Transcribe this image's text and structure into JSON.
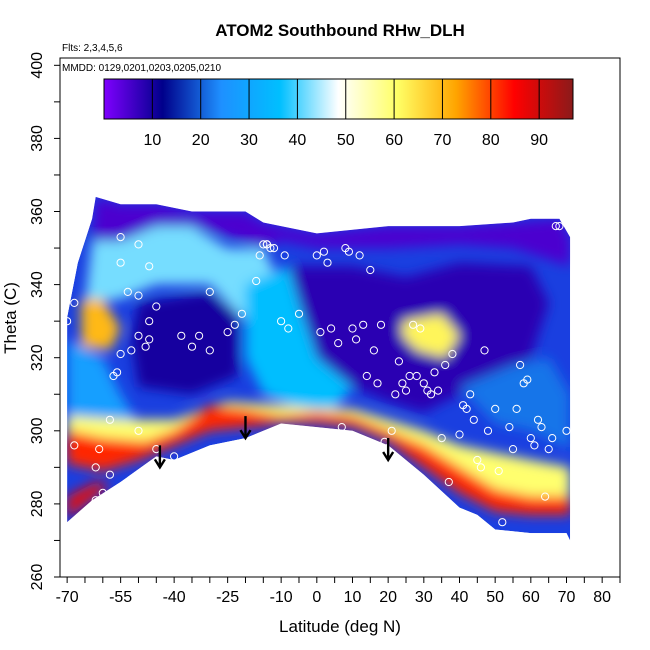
{
  "chart_data": {
    "type": "heatmap",
    "title": "ATOM2 Southbound RHw_DLH",
    "subtitle_flights": "Flts: 2,3,4,5,6",
    "subtitle_dates": "MMDD: 0129,0201,0203,0205,0210",
    "xlabel": "Latitude (deg N)",
    "ylabel": "Theta (C)",
    "xlim": [
      -72,
      85
    ],
    "ylim": [
      260,
      402
    ],
    "x_ticks": [
      -70,
      -55,
      -40,
      -25,
      -10,
      0,
      10,
      20,
      30,
      40,
      50,
      60,
      70,
      80
    ],
    "y_ticks": [
      260,
      280,
      300,
      320,
      340,
      360,
      380,
      400
    ],
    "colorbar": {
      "range": [
        0,
        97
      ],
      "ticks": [
        10,
        20,
        30,
        40,
        50,
        60,
        70,
        80,
        90
      ],
      "colors": [
        "#7f00ff",
        "#00008b",
        "#1e90ff",
        "#00bfff",
        "#ffffff",
        "#ffff66",
        "#ffa500",
        "#ff0000",
        "#8b1a1a"
      ]
    },
    "field_top": [
      [
        -70,
        331
      ],
      [
        -67,
        346
      ],
      [
        -63,
        358
      ],
      [
        -62,
        364
      ],
      [
        -55,
        362
      ],
      [
        -45,
        362
      ],
      [
        -35,
        360
      ],
      [
        -20,
        360
      ],
      [
        -15,
        357
      ],
      [
        -10,
        356
      ],
      [
        0,
        354
      ],
      [
        20,
        356
      ],
      [
        40,
        356
      ],
      [
        55,
        357
      ],
      [
        60,
        358
      ],
      [
        68,
        358
      ],
      [
        71,
        353
      ]
    ],
    "field_bottom": [
      [
        -70,
        275
      ],
      [
        -63,
        281
      ],
      [
        -55,
        286
      ],
      [
        -45,
        293
      ],
      [
        -40,
        292
      ],
      [
        -30,
        296
      ],
      [
        -20,
        298
      ],
      [
        -10,
        302
      ],
      [
        0,
        301
      ],
      [
        10,
        300
      ],
      [
        20,
        296
      ],
      [
        30,
        288
      ],
      [
        40,
        279
      ],
      [
        45,
        277
      ],
      [
        50,
        273
      ],
      [
        60,
        272
      ],
      [
        70,
        272
      ],
      [
        71,
        270
      ]
    ],
    "regions": [
      {
        "name": "upper-dry-band",
        "value": 5,
        "poly": [
          [
            -62,
            364
          ],
          [
            -55,
            362
          ],
          [
            -45,
            362
          ],
          [
            -35,
            360
          ],
          [
            -20,
            360
          ],
          [
            -15,
            357
          ],
          [
            0,
            354
          ],
          [
            20,
            356
          ],
          [
            40,
            356
          ],
          [
            55,
            357
          ],
          [
            68,
            358
          ],
          [
            71,
            353
          ],
          [
            71,
            345
          ],
          [
            55,
            350
          ],
          [
            40,
            351
          ],
          [
            20,
            350
          ],
          [
            0,
            350
          ],
          [
            -10,
            352
          ],
          [
            -15,
            350
          ],
          [
            -35,
            356
          ],
          [
            -45,
            356
          ],
          [
            -55,
            352
          ],
          [
            -63,
            352
          ]
        ]
      },
      {
        "name": "upper-moist-tongue",
        "value": 42,
        "poly": [
          [
            -63,
            352
          ],
          [
            -55,
            352
          ],
          [
            -45,
            356
          ],
          [
            -35,
            356
          ],
          [
            -25,
            350
          ],
          [
            -15,
            350
          ],
          [
            -10,
            340
          ],
          [
            -8,
            320
          ],
          [
            -12,
            315
          ],
          [
            -20,
            330
          ],
          [
            -30,
            340
          ],
          [
            -45,
            340
          ],
          [
            -55,
            336
          ],
          [
            -65,
            335
          ]
        ]
      },
      {
        "name": "mid-dry-west",
        "value": 10,
        "poly": [
          [
            -50,
            335
          ],
          [
            -30,
            338
          ],
          [
            -22,
            332
          ],
          [
            -22,
            315
          ],
          [
            -35,
            310
          ],
          [
            -50,
            312
          ],
          [
            -52,
            325
          ]
        ]
      },
      {
        "name": "mid-dry-east",
        "value": 8,
        "poly": [
          [
            -8,
            345
          ],
          [
            10,
            345
          ],
          [
            25,
            342
          ],
          [
            40,
            346
          ],
          [
            60,
            345
          ],
          [
            65,
            335
          ],
          [
            60,
            320
          ],
          [
            50,
            315
          ],
          [
            40,
            310
          ],
          [
            30,
            305
          ],
          [
            20,
            308
          ],
          [
            10,
            312
          ],
          [
            0,
            320
          ],
          [
            -5,
            335
          ]
        ]
      },
      {
        "name": "mid-moist-center",
        "value": 36,
        "poly": [
          [
            -20,
            340
          ],
          [
            -8,
            345
          ],
          [
            -5,
            335
          ],
          [
            0,
            320
          ],
          [
            10,
            312
          ],
          [
            5,
            306
          ],
          [
            -5,
            306
          ],
          [
            -15,
            310
          ],
          [
            -20,
            320
          ]
        ]
      },
      {
        "name": "moist-patch-east",
        "value": 62,
        "poly": [
          [
            24,
            330
          ],
          [
            35,
            332
          ],
          [
            40,
            326
          ],
          [
            36,
            320
          ],
          [
            28,
            322
          ],
          [
            24,
            326
          ]
        ]
      },
      {
        "name": "moist-patch-west",
        "value": 70,
        "poly": [
          [
            -66,
            336
          ],
          [
            -60,
            336
          ],
          [
            -55,
            328
          ],
          [
            -58,
            322
          ],
          [
            -66,
            323
          ]
        ]
      },
      {
        "name": "mid-blue-west",
        "value": 28,
        "poly": [
          [
            -70,
            325
          ],
          [
            -60,
            320
          ],
          [
            -55,
            310
          ],
          [
            -50,
            302
          ],
          [
            -60,
            300
          ],
          [
            -70,
            302
          ]
        ]
      },
      {
        "name": "lower-moist-band",
        "value": 60,
        "poly": [
          [
            -70,
            300
          ],
          [
            -60,
            298
          ],
          [
            -48,
            297
          ],
          [
            -40,
            300
          ],
          [
            -30,
            307
          ],
          [
            -20,
            306
          ],
          [
            -10,
            304
          ],
          [
            0,
            305
          ],
          [
            10,
            304
          ],
          [
            20,
            300
          ],
          [
            30,
            296
          ],
          [
            40,
            290
          ],
          [
            50,
            284
          ],
          [
            60,
            282
          ],
          [
            71,
            282
          ],
          [
            71,
            290
          ],
          [
            60,
            292
          ],
          [
            50,
            294
          ],
          [
            40,
            296
          ],
          [
            30,
            300
          ],
          [
            20,
            303
          ],
          [
            10,
            306
          ],
          [
            0,
            306
          ],
          [
            -10,
            307
          ],
          [
            -25,
            308
          ],
          [
            -40,
            303
          ],
          [
            -55,
            303
          ],
          [
            -70,
            304
          ]
        ]
      },
      {
        "name": "lower-wet-band",
        "value": 82,
        "poly": [
          [
            -70,
            291
          ],
          [
            -60,
            289
          ],
          [
            -50,
            292
          ],
          [
            -40,
            296
          ],
          [
            -30,
            300
          ],
          [
            -20,
            301
          ],
          [
            -10,
            302
          ],
          [
            0,
            302
          ],
          [
            10,
            301
          ],
          [
            20,
            297
          ],
          [
            30,
            290
          ],
          [
            40,
            283
          ],
          [
            50,
            278
          ],
          [
            60,
            277
          ],
          [
            71,
            277
          ],
          [
            71,
            282
          ],
          [
            60,
            282
          ],
          [
            50,
            284
          ],
          [
            40,
            290
          ],
          [
            30,
            296
          ],
          [
            20,
            300
          ],
          [
            10,
            304
          ],
          [
            0,
            305
          ],
          [
            -10,
            304
          ],
          [
            -20,
            306
          ],
          [
            -30,
            307
          ],
          [
            -40,
            300
          ],
          [
            -48,
            297
          ],
          [
            -60,
            298
          ],
          [
            -70,
            300
          ]
        ]
      },
      {
        "name": "surface-red",
        "value": 88,
        "poly": [
          [
            -70,
            276
          ],
          [
            -62,
            282
          ],
          [
            -58,
            285
          ],
          [
            -62,
            286
          ],
          [
            -70,
            282
          ]
        ]
      },
      {
        "name": "lower-blue-east",
        "value": 22,
        "poly": [
          [
            40,
            312
          ],
          [
            55,
            318
          ],
          [
            65,
            320
          ],
          [
            71,
            310
          ],
          [
            71,
            295
          ],
          [
            60,
            300
          ],
          [
            50,
            302
          ]
        ]
      }
    ],
    "points": [
      [
        -70,
        330
      ],
      [
        -68,
        335
      ],
      [
        -55,
        353
      ],
      [
        -50,
        351
      ],
      [
        -55,
        346
      ],
      [
        -47,
        345
      ],
      [
        -53,
        338
      ],
      [
        -50,
        337
      ],
      [
        -45,
        334
      ],
      [
        -47,
        330
      ],
      [
        -50,
        326
      ],
      [
        -47,
        325
      ],
      [
        -48,
        323
      ],
      [
        -52,
        322
      ],
      [
        -55,
        321
      ],
      [
        -57,
        315
      ],
      [
        -56,
        316
      ],
      [
        -58,
        303
      ],
      [
        -61,
        295
      ],
      [
        -68,
        296
      ],
      [
        -62,
        290
      ],
      [
        -58,
        288
      ],
      [
        -60,
        283
      ],
      [
        -62,
        281
      ],
      [
        -50,
        300
      ],
      [
        -45,
        295
      ],
      [
        -40,
        293
      ],
      [
        -38,
        326
      ],
      [
        -35,
        323
      ],
      [
        -33,
        326
      ],
      [
        -30,
        338
      ],
      [
        -30,
        322
      ],
      [
        -25,
        327
      ],
      [
        -23,
        329
      ],
      [
        -21,
        332
      ],
      [
        -17,
        341
      ],
      [
        -16,
        348
      ],
      [
        -15,
        351
      ],
      [
        -14,
        351
      ],
      [
        -14,
        351
      ],
      [
        -13,
        350
      ],
      [
        -12,
        350
      ],
      [
        -10,
        330
      ],
      [
        -8,
        328
      ],
      [
        -9,
        348
      ],
      [
        -5,
        332
      ],
      [
        -4,
        300
      ],
      [
        0,
        348
      ],
      [
        1,
        327
      ],
      [
        2,
        349
      ],
      [
        3,
        346
      ],
      [
        4,
        328
      ],
      [
        6,
        324
      ],
      [
        7,
        301
      ],
      [
        8,
        350
      ],
      [
        9,
        349
      ],
      [
        10,
        328
      ],
      [
        11,
        325
      ],
      [
        12,
        348
      ],
      [
        13,
        329
      ],
      [
        14,
        315
      ],
      [
        15,
        344
      ],
      [
        16,
        322
      ],
      [
        17,
        313
      ],
      [
        18,
        329
      ],
      [
        19,
        297
      ],
      [
        20,
        294
      ],
      [
        21,
        300
      ],
      [
        22,
        310
      ],
      [
        23,
        319
      ],
      [
        24,
        313
      ],
      [
        25,
        311
      ],
      [
        26,
        315
      ],
      [
        27,
        329
      ],
      [
        28,
        315
      ],
      [
        29,
        328
      ],
      [
        30,
        313
      ],
      [
        31,
        311
      ],
      [
        32,
        310
      ],
      [
        33,
        316
      ],
      [
        34,
        311
      ],
      [
        35,
        298
      ],
      [
        36,
        318
      ],
      [
        37,
        286
      ],
      [
        38,
        321
      ],
      [
        40,
        299
      ],
      [
        41,
        307
      ],
      [
        42,
        306
      ],
      [
        43,
        310
      ],
      [
        44,
        303
      ],
      [
        45,
        292
      ],
      [
        46,
        290
      ],
      [
        47,
        322
      ],
      [
        48,
        300
      ],
      [
        50,
        306
      ],
      [
        51,
        289
      ],
      [
        52,
        275
      ],
      [
        54,
        301
      ],
      [
        55,
        295
      ],
      [
        56,
        306
      ],
      [
        57,
        318
      ],
      [
        58,
        313
      ],
      [
        59,
        314
      ],
      [
        60,
        298
      ],
      [
        61,
        296
      ],
      [
        62,
        303
      ],
      [
        63,
        301
      ],
      [
        64,
        282
      ],
      [
        65,
        295
      ],
      [
        66,
        298
      ],
      [
        67,
        356
      ],
      [
        68,
        356
      ],
      [
        70,
        300
      ]
    ],
    "arrows": [
      [
        -44,
        290
      ],
      [
        -20,
        298
      ],
      [
        20,
        292
      ]
    ]
  }
}
